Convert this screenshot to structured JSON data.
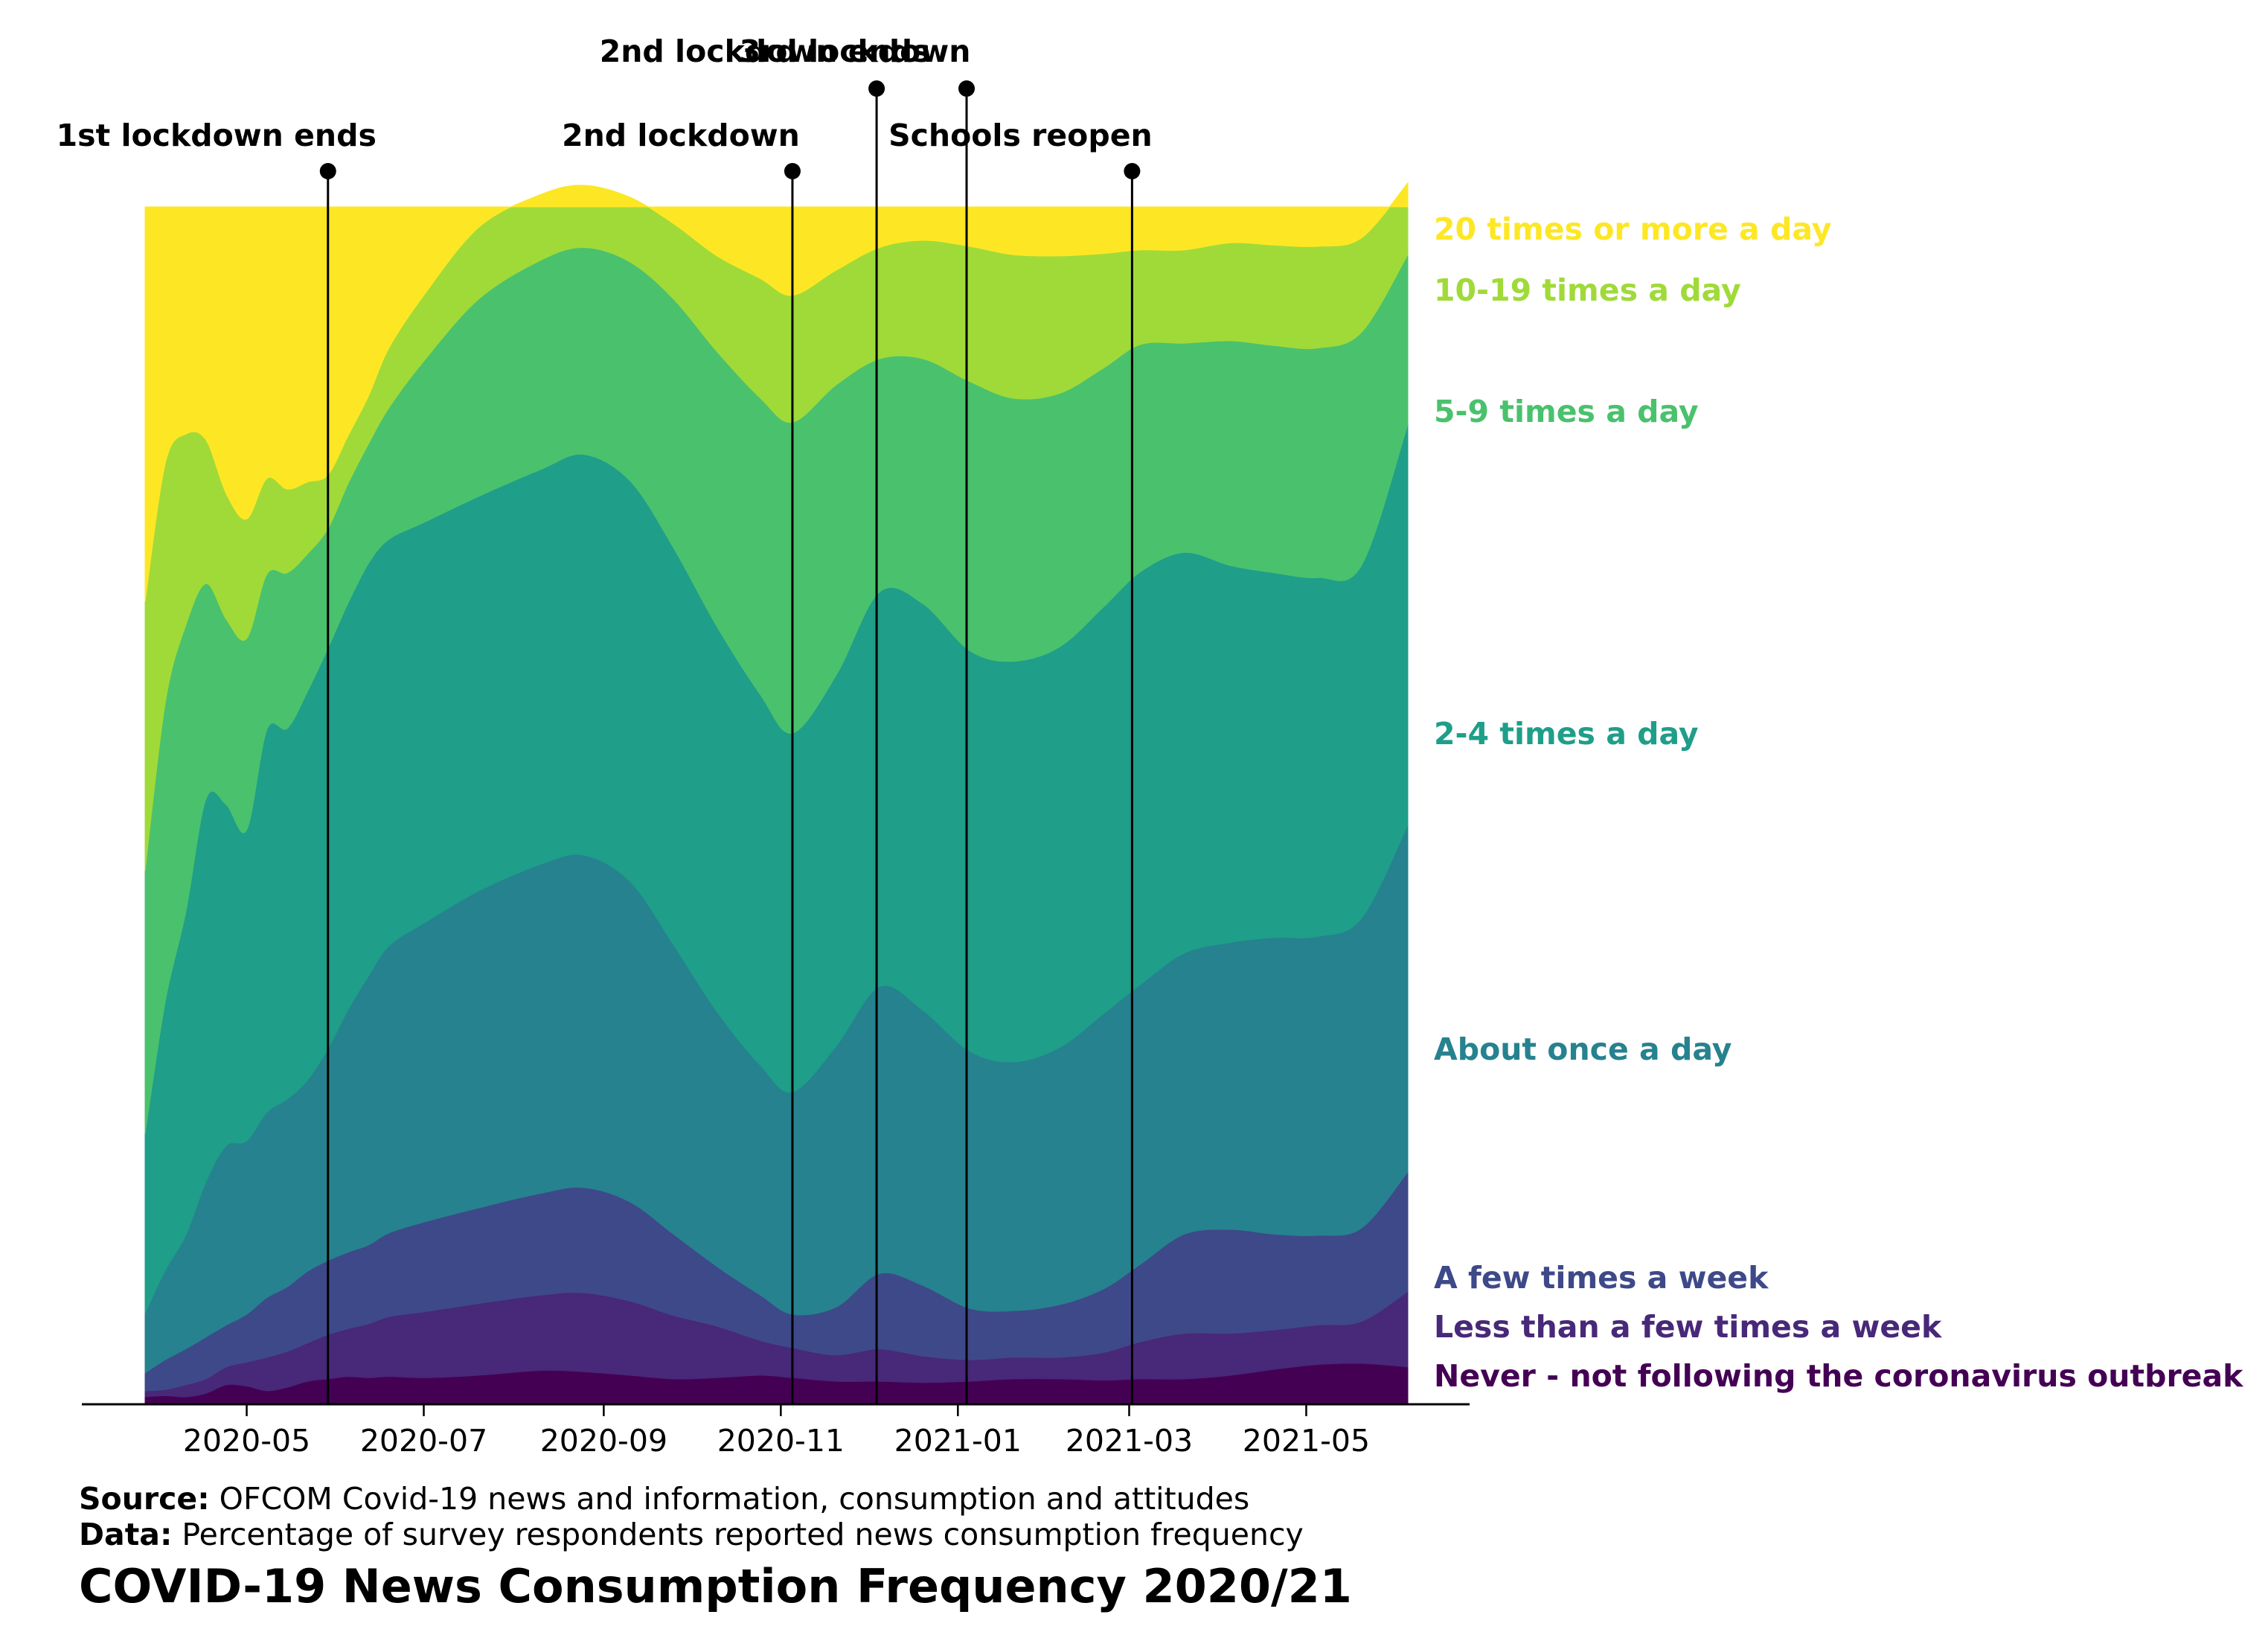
{
  "chart_data": {
    "type": "area",
    "subtype": "stacked-percent-streamgraph",
    "title": "COVID-19 News Consumption Frequency 2020/21",
    "xlabel": "",
    "ylabel": "",
    "x_range": [
      "2020-03-27",
      "2021-06-05"
    ],
    "ylim": [
      0,
      100
    ],
    "grid": false,
    "legend": "right, labels aligned to each band",
    "x_ticks": [
      "2020-05",
      "2020-07",
      "2020-09",
      "2020-11",
      "2021-01",
      "2021-03",
      "2021-05"
    ],
    "x_tick_dates": [
      "2020-05-01",
      "2020-07-01",
      "2020-09-01",
      "2020-11-01",
      "2021-01-01",
      "2021-03-01",
      "2021-05-01"
    ],
    "x": [
      "2020-03-27",
      "2020-04-03",
      "2020-04-10",
      "2020-04-17",
      "2020-04-24",
      "2020-05-01",
      "2020-05-08",
      "2020-05-15",
      "2020-05-22",
      "2020-05-29",
      "2020-06-05",
      "2020-06-12",
      "2020-06-19",
      "2020-07-01",
      "2020-07-20",
      "2020-08-10",
      "2020-08-25",
      "2020-09-10",
      "2020-09-25",
      "2020-10-10",
      "2020-10-25",
      "2020-11-05",
      "2020-11-20",
      "2020-12-05",
      "2020-12-20",
      "2021-01-05",
      "2021-01-20",
      "2021-02-05",
      "2021-02-20",
      "2021-03-05",
      "2021-03-20",
      "2021-04-05",
      "2021-04-20",
      "2021-05-05",
      "2021-05-20",
      "2021-06-05"
    ],
    "series": [
      {
        "name": "Never - not following the coronavirus outbreak",
        "color": "#440154",
        "values": [
          0.5,
          0.6,
          0.5,
          0.8,
          1.5,
          1.4,
          1.0,
          1.3,
          1.8,
          2.0,
          2.2,
          2.1,
          2.2,
          2.1,
          2.3,
          2.7,
          2.6,
          2.3,
          2.0,
          2.1,
          2.3,
          2.1,
          1.8,
          1.8,
          1.7,
          1.8,
          2.0,
          2.0,
          1.9,
          2.0,
          2.0,
          2.3,
          2.8,
          3.2,
          3.3,
          3.0
        ]
      },
      {
        "name": "Less than a few times a week",
        "color": "#482878",
        "values": [
          0.5,
          0.5,
          1.0,
          1.2,
          1.5,
          2.0,
          2.8,
          3.0,
          3.2,
          3.7,
          4.0,
          4.5,
          5.0,
          5.5,
          6.0,
          6.3,
          6.6,
          6.2,
          5.3,
          4.3,
          2.9,
          2.5,
          2.2,
          2.7,
          2.2,
          1.8,
          1.8,
          1.8,
          2.3,
          3.1,
          3.8,
          3.5,
          3.3,
          3.3,
          3.5,
          6.3
        ]
      },
      {
        "name": "A few times a week",
        "color": "#3e4989",
        "values": [
          1.5,
          2.5,
          3.0,
          3.5,
          3.5,
          4.0,
          5.0,
          5.4,
          6.0,
          6.2,
          6.4,
          6.6,
          7.0,
          7.5,
          8.0,
          8.5,
          8.8,
          8.3,
          6.8,
          5.0,
          3.8,
          2.8,
          4.0,
          6.3,
          5.9,
          4.3,
          3.9,
          4.4,
          5.3,
          6.5,
          8.3,
          8.7,
          8.0,
          7.5,
          7.8,
          10.0
        ]
      },
      {
        "name": "About once a day",
        "color": "#26828e",
        "values": [
          5.0,
          7.5,
          9.5,
          13.0,
          15.0,
          14.5,
          15.5,
          15.7,
          16.0,
          17.7,
          20.3,
          22.5,
          24.0,
          25.0,
          26.5,
          27.5,
          27.8,
          26.8,
          24.2,
          21.3,
          19.2,
          18.6,
          21.8,
          24.0,
          23.0,
          21.5,
          20.8,
          21.5,
          23.0,
          23.4,
          23.5,
          24.0,
          24.8,
          25.0,
          25.9,
          29.0
        ]
      },
      {
        "name": "2-4 times a day",
        "color": "#1f9e89",
        "values": [
          15.0,
          22.5,
          27.0,
          32.0,
          28.5,
          26.0,
          32.0,
          31.0,
          32.5,
          33.5,
          34.0,
          34.5,
          34.0,
          33.5,
          33.0,
          33.0,
          33.5,
          33.5,
          33.2,
          32.2,
          31.0,
          30.0,
          31.0,
          33.0,
          34.0,
          33.5,
          33.5,
          33.5,
          34.0,
          34.5,
          33.5,
          31.5,
          30.5,
          30.0,
          29.5,
          33.5
        ]
      },
      {
        "name": "5-9 times a day",
        "color": "#4ac16d",
        "values": [
          22.0,
          25.0,
          24.0,
          18.0,
          15.5,
          16.0,
          13.0,
          13.0,
          11.5,
          10.0,
          10.0,
          10.0,
          11.0,
          13.5,
          16.5,
          17.5,
          17.3,
          18.3,
          20.8,
          23.0,
          24.8,
          26.0,
          24.3,
          19.5,
          20.5,
          22.5,
          22.0,
          21.2,
          20.0,
          19.0,
          17.5,
          18.8,
          19.0,
          19.2,
          19.5,
          14.2
        ]
      },
      {
        "name": "10-19 times a day",
        "color": "#a0da39",
        "values": [
          22.5,
          20.0,
          16.0,
          12.0,
          10.5,
          10.0,
          8.0,
          7.0,
          6.0,
          4.5,
          4.0,
          4.0,
          5.0,
          5.5,
          6.0,
          5.5,
          5.2,
          5.4,
          6.3,
          8.0,
          10.0,
          10.6,
          9.6,
          9.3,
          9.9,
          11.3,
          12.0,
          11.5,
          9.6,
          7.9,
          7.8,
          8.2,
          8.4,
          8.5,
          7.9,
          6.0
        ]
      },
      {
        "name": "20 times or more a day",
        "color": "#fde725",
        "values": [
          33.0,
          21.4,
          19.0,
          19.5,
          24.0,
          26.1,
          22.7,
          23.6,
          23.0,
          22.4,
          19.1,
          15.8,
          11.8,
          7.4,
          1.7,
          -1.0,
          -1.8,
          -0.8,
          1.4,
          4.1,
          6.0,
          7.4,
          5.3,
          3.4,
          2.8,
          3.3,
          4.0,
          4.1,
          3.9,
          3.6,
          3.6,
          3.0,
          3.2,
          3.3,
          2.6,
          -2.0
        ]
      }
    ],
    "events": [
      {
        "label": "1st lockdown ends",
        "date": "2020-05-29",
        "tier": 1
      },
      {
        "label": "2nd lockdown",
        "date": "2020-11-05",
        "tier": 1
      },
      {
        "label": "2nd lockdown ends",
        "date": "2020-12-04",
        "tier": 2
      },
      {
        "label": "3rd lockdown",
        "date": "2021-01-04",
        "tier": 2
      },
      {
        "label": "Schools reopen",
        "date": "2021-03-02",
        "tier": 1
      }
    ]
  },
  "footer": {
    "source_label": "Source:",
    "source_text": "OFCOM Covid-19 news and information, consumption and attitudes",
    "data_label": "Data:",
    "data_text": "Percentage of survey respondents reported news consumption frequency"
  }
}
